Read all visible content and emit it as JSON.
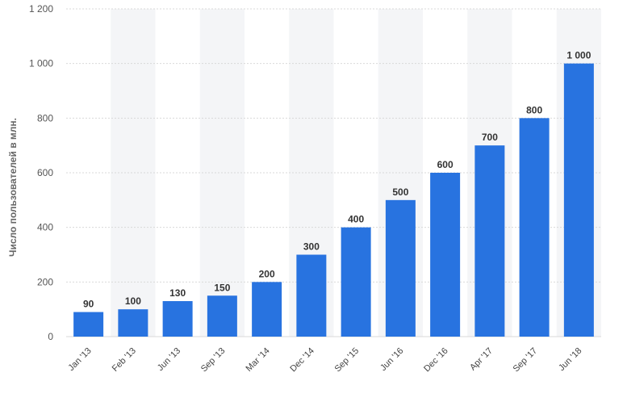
{
  "chart_data": {
    "type": "bar",
    "title": "",
    "xlabel": "",
    "ylabel": "Число пользователей в млн.",
    "ylim": [
      0,
      1200
    ],
    "yticks": [
      0,
      200,
      400,
      600,
      800,
      1000,
      1200
    ],
    "ytick_labels": [
      "0",
      "200",
      "400",
      "600",
      "800",
      "1 000",
      "1 200"
    ],
    "grid": true,
    "bar_color": "#2873e0",
    "categories": [
      "Jan '13",
      "Feb '13",
      "Jun '13",
      "Sep '13",
      "Mar '14",
      "Dec '14",
      "Sep '15",
      "Jun '16",
      "Dec '16",
      "Apr '17",
      "Sep '17",
      "Jun '18"
    ],
    "values": [
      90,
      100,
      130,
      150,
      200,
      300,
      400,
      500,
      600,
      700,
      800,
      1000
    ],
    "value_labels": [
      "90",
      "100",
      "130",
      "150",
      "200",
      "300",
      "400",
      "500",
      "600",
      "700",
      "800",
      "1 000"
    ]
  }
}
